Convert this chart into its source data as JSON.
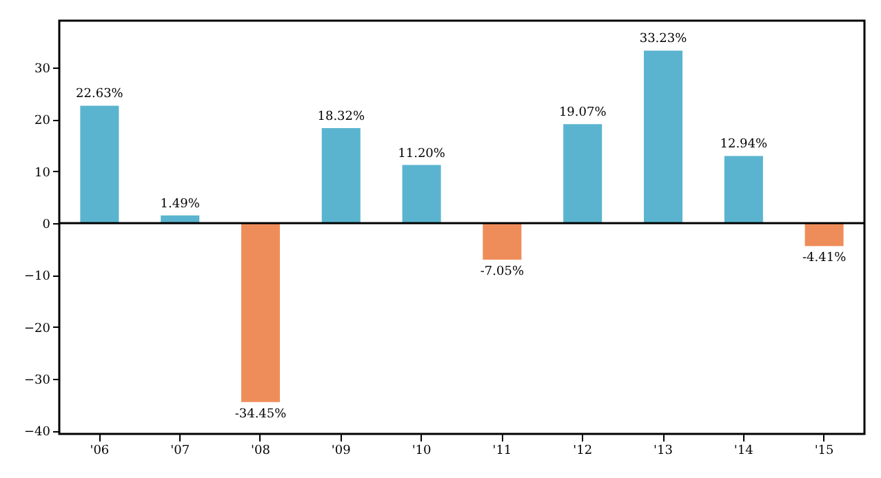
{
  "chart_data": {
    "type": "bar",
    "categories": [
      "'06",
      "'07",
      "'08",
      "'09",
      "'10",
      "'11",
      "'12",
      "'13",
      "'14",
      "'15"
    ],
    "values": [
      22.63,
      1.49,
      -34.45,
      18.32,
      11.2,
      -7.05,
      19.07,
      33.23,
      12.94,
      -4.41
    ],
    "value_labels": [
      "22.63%",
      "1.49%",
      "-34.45%",
      "18.32%",
      "11.20%",
      "-7.05%",
      "19.07%",
      "33.23%",
      "12.94%",
      "-4.41%"
    ],
    "colors": [
      "#5ab4cf",
      "#5ab4cf",
      "#ef8d5a",
      "#5ab4cf",
      "#5ab4cf",
      "#ef8d5a",
      "#5ab4cf",
      "#5ab4cf",
      "#5ab4cf",
      "#ef8d5a"
    ],
    "ylim": [
      -40.6,
      39
    ],
    "yticks": [
      -40,
      -30,
      -20,
      -10,
      0,
      10,
      20,
      30
    ],
    "ref_lines": [
      {
        "axis": "y",
        "value": 0
      }
    ],
    "grid": false
  }
}
